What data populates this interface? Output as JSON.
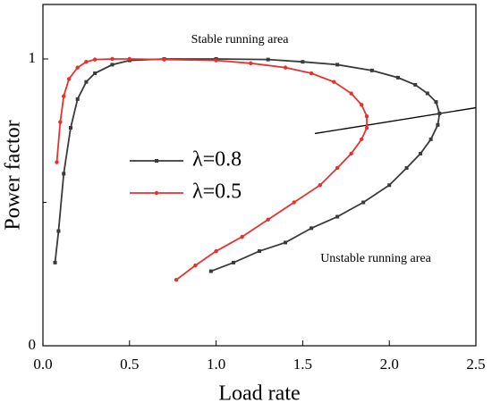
{
  "chart_data": {
    "type": "line",
    "x_label": "Load rate",
    "y_label": "Power factor",
    "xlim": [
      0,
      2.5
    ],
    "ylim": [
      0,
      1.19
    ],
    "xticks": [
      {
        "value": 0,
        "label": "0.0"
      },
      0.5,
      {
        "value": 1,
        "label": "1.0"
      },
      1.5,
      {
        "value": 2,
        "label": "2.0"
      },
      2.5
    ],
    "yticks": [
      0,
      1
    ],
    "y_minor_ticks": [
      0.5
    ],
    "annotations": [
      "Stable running area",
      "Unstable running area"
    ],
    "boundary_line": {
      "color": "#000000",
      "x": [
        1.57,
        2.5
      ],
      "y": [
        0.74,
        0.83
      ]
    },
    "series": [
      {
        "name": "λ=0.8",
        "color": "#3a3a3a",
        "marker": "square",
        "x": [
          0.07,
          0.09,
          0.12,
          0.16,
          0.2,
          0.25,
          0.3,
          0.4,
          0.5,
          0.7,
          1.0,
          1.3,
          1.5,
          1.7,
          1.9,
          2.05,
          2.15,
          2.22,
          2.27,
          2.29,
          2.28,
          2.24,
          2.18,
          2.1,
          2.0,
          1.85,
          1.7,
          1.55,
          1.4,
          1.25,
          1.1,
          0.97
        ],
        "values": [
          0.29,
          0.4,
          0.6,
          0.76,
          0.86,
          0.92,
          0.95,
          0.98,
          0.995,
          1.0,
          1.0,
          0.998,
          0.99,
          0.98,
          0.96,
          0.935,
          0.91,
          0.88,
          0.85,
          0.81,
          0.77,
          0.72,
          0.67,
          0.62,
          0.56,
          0.5,
          0.45,
          0.41,
          0.36,
          0.33,
          0.29,
          0.26
        ]
      },
      {
        "name": "λ=0.5",
        "color": "#e8312f",
        "marker": "circle",
        "x": [
          0.08,
          0.1,
          0.12,
          0.15,
          0.2,
          0.25,
          0.3,
          0.4,
          0.5,
          0.7,
          1.0,
          1.2,
          1.4,
          1.55,
          1.68,
          1.78,
          1.84,
          1.87,
          1.87,
          1.84,
          1.78,
          1.7,
          1.6,
          1.45,
          1.3,
          1.15,
          1.0,
          0.88,
          0.77
        ],
        "values": [
          0.64,
          0.78,
          0.87,
          0.93,
          0.97,
          0.99,
          0.998,
          1.0,
          1.0,
          0.998,
          0.995,
          0.985,
          0.97,
          0.95,
          0.92,
          0.88,
          0.84,
          0.8,
          0.76,
          0.72,
          0.67,
          0.62,
          0.56,
          0.5,
          0.44,
          0.38,
          0.33,
          0.28,
          0.23
        ]
      }
    ]
  }
}
